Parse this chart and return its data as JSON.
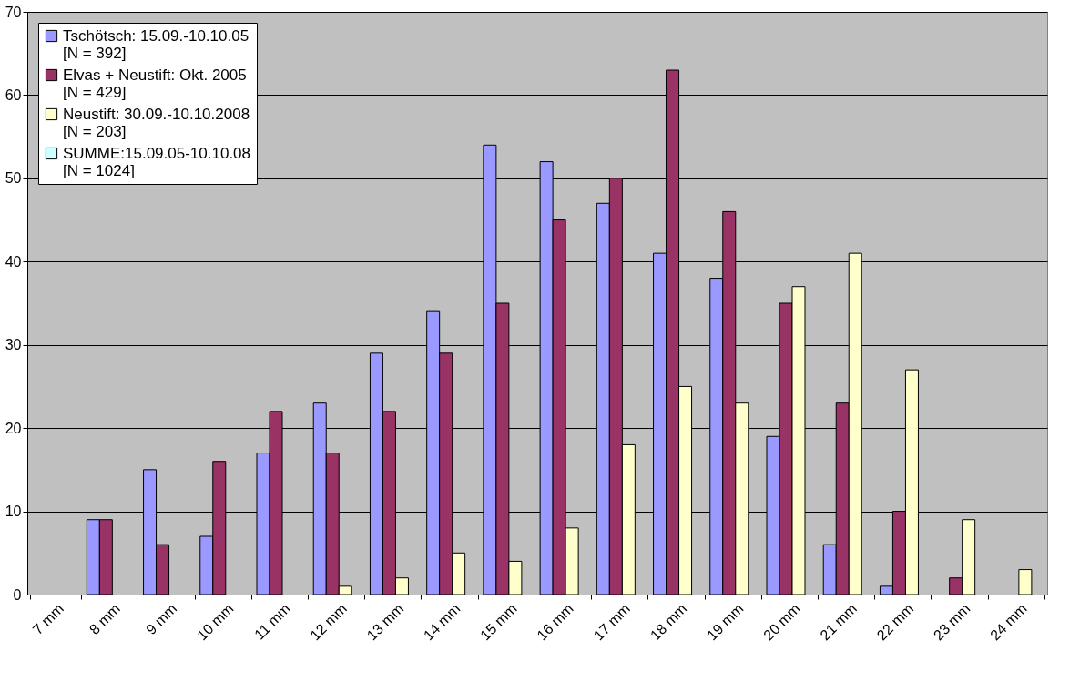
{
  "chart_data": {
    "type": "bar",
    "categories": [
      "7 mm",
      "8 mm",
      "9 mm",
      "10 mm",
      "11 mm",
      "12 mm",
      "13 mm",
      "14 mm",
      "15 mm",
      "16 mm",
      "17 mm",
      "18 mm",
      "19 mm",
      "20 mm",
      "21 mm",
      "22 mm",
      "23 mm",
      "24 mm"
    ],
    "series": [
      {
        "name": "Tschötsch: 15.09.-10.10.05\n[N = 392]",
        "color": "#9999ff",
        "values": [
          null,
          9,
          15,
          7,
          17,
          23,
          29,
          34,
          54,
          52,
          47,
          41,
          38,
          19,
          6,
          1,
          null,
          null
        ]
      },
      {
        "name": "Elvas + Neustift: Okt. 2005\n[N = 429]",
        "color": "#993366",
        "values": [
          null,
          9,
          6,
          16,
          22,
          17,
          22,
          29,
          35,
          45,
          50,
          63,
          46,
          35,
          23,
          10,
          2,
          null
        ]
      },
      {
        "name": "Neustift: 30.09.-10.10.2008\n[N = 203]",
        "color": "#ffffcc",
        "values": [
          null,
          null,
          null,
          null,
          null,
          1,
          2,
          5,
          4,
          8,
          18,
          25,
          23,
          37,
          41,
          27,
          9,
          3
        ]
      },
      {
        "name": "SUMME:15.09.05-10.10.08\n[N = 1024]",
        "color": "#ccffff",
        "values": [
          null,
          null,
          null,
          null,
          null,
          null,
          null,
          null,
          null,
          null,
          null,
          null,
          null,
          null,
          null,
          null,
          null,
          null
        ]
      }
    ],
    "ylim": [
      0,
      70
    ],
    "yticks": [
      0,
      10,
      20,
      30,
      40,
      50,
      60,
      70
    ],
    "grid": "y",
    "legend": "top left"
  }
}
